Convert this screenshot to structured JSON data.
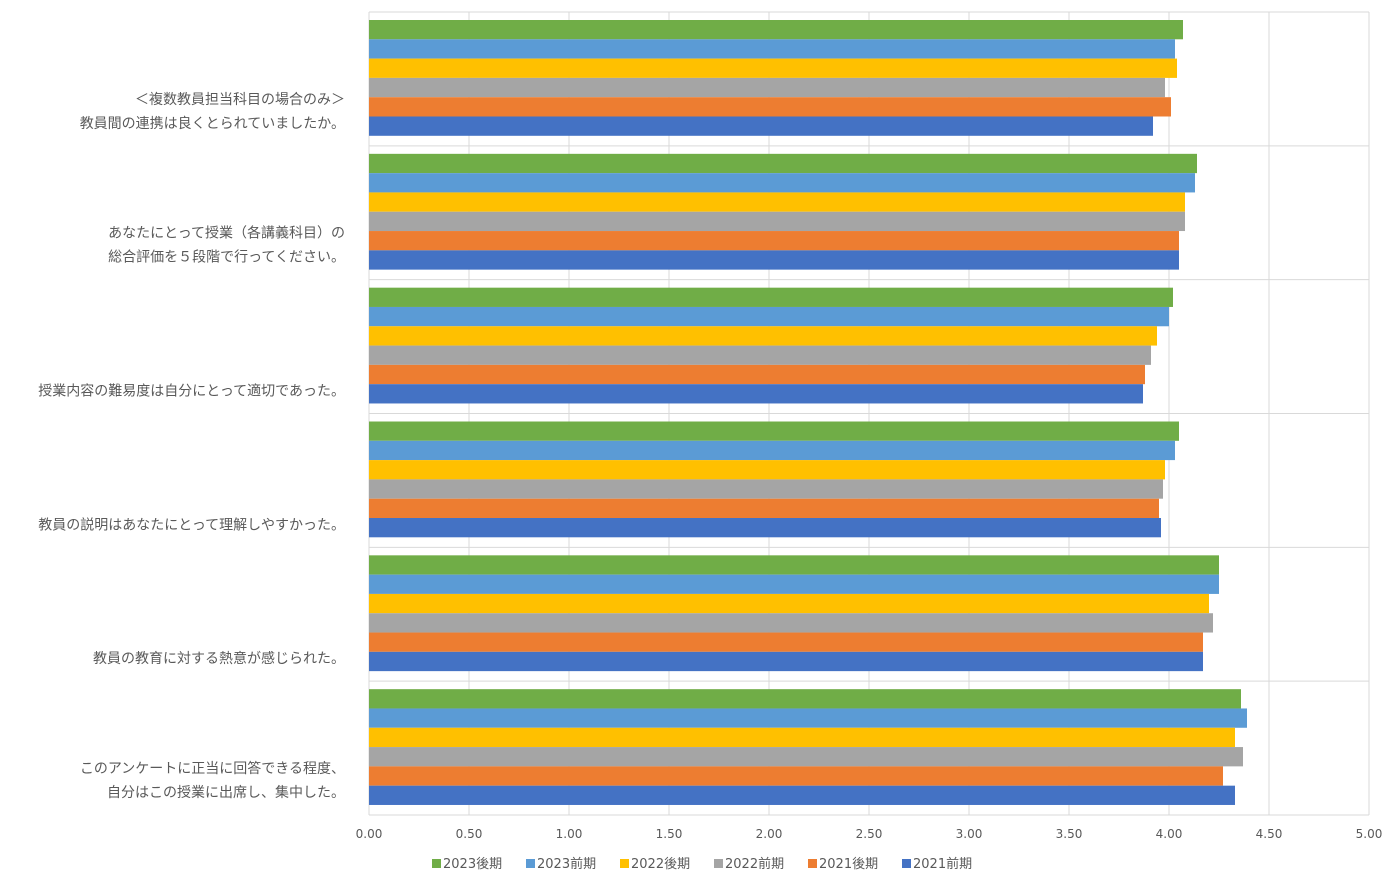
{
  "chart_data": {
    "type": "bar",
    "orientation": "horizontal",
    "categories": [
      [
        "＜複数教員担当科目の場合のみ＞",
        "教員間の連携は良くとられていましたか。"
      ],
      [
        "あなたにとって授業（各講義科目）の",
        "総合評価を５段階で行ってください。"
      ],
      [
        "授業内容の難易度は自分にとって適切であった。"
      ],
      [
        "教員の説明はあなたにとって理解しやすかった。"
      ],
      [
        "教員の教育に対する熱意が感じられた。"
      ],
      [
        "このアンケートに正当に回答できる程度、",
        "自分はこの授業に出席し、集中した。"
      ]
    ],
    "series": [
      {
        "name": "2023後期",
        "color": "#70ad47",
        "values": [
          4.07,
          4.14,
          4.02,
          4.05,
          4.25,
          4.36
        ]
      },
      {
        "name": "2023前期",
        "color": "#5b9bd5",
        "values": [
          4.03,
          4.13,
          4.0,
          4.03,
          4.25,
          4.39
        ]
      },
      {
        "name": "2022後期",
        "color": "#ffc000",
        "values": [
          4.04,
          4.08,
          3.94,
          3.98,
          4.2,
          4.33
        ]
      },
      {
        "name": "2022前期",
        "color": "#a5a5a5",
        "values": [
          3.98,
          4.08,
          3.91,
          3.97,
          4.22,
          4.37
        ]
      },
      {
        "name": "2021後期",
        "color": "#ed7d31",
        "values": [
          4.01,
          4.05,
          3.88,
          3.95,
          4.17,
          4.27
        ]
      },
      {
        "name": "2021前期",
        "color": "#4472c4",
        "values": [
          3.92,
          4.05,
          3.87,
          3.96,
          4.17,
          4.33
        ]
      }
    ],
    "xlim": [
      0,
      5
    ],
    "xticks": [
      "0.00",
      "0.50",
      "1.00",
      "1.50",
      "2.00",
      "2.50",
      "3.00",
      "3.50",
      "4.00",
      "4.50",
      "5.00"
    ],
    "grid": true,
    "legend_position": "bottom"
  }
}
